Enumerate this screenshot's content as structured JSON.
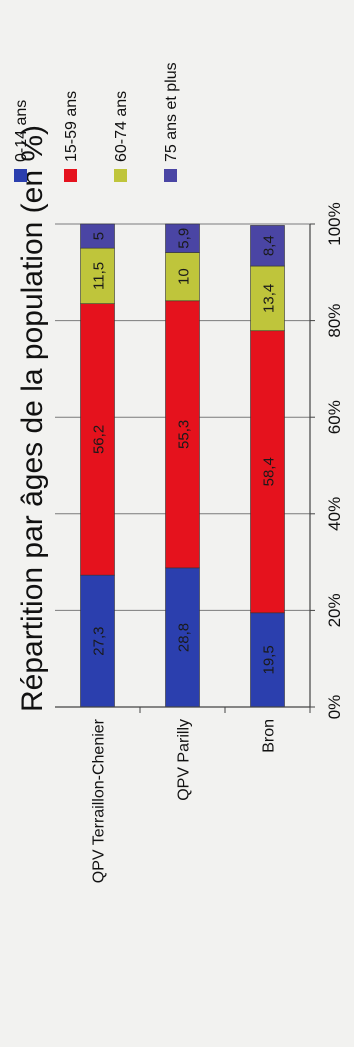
{
  "chart_data": {
    "type": "bar",
    "stacked": true,
    "percent_stacked": true,
    "orientation": "horizontal",
    "title": "Répartition par âges de la population (en %)",
    "categories": [
      "QPV Terraillon-Chenier",
      "QPV Parilly",
      "Bron"
    ],
    "series": [
      {
        "name": "0-14 ans",
        "color": "#2b3fae",
        "values": [
          27.3,
          28.8,
          19.5
        ],
        "labels": [
          "27,3",
          "28,8",
          "19,5"
        ]
      },
      {
        "name": "15-59 ans",
        "color": "#e5121d",
        "values": [
          56.2,
          55.3,
          58.4
        ],
        "labels": [
          "56,2",
          "55,3",
          "58,4"
        ]
      },
      {
        "name": "60-74 ans",
        "color": "#bfc53b",
        "values": [
          11.5,
          10,
          13.4
        ],
        "labels": [
          "11,5",
          "10",
          "13,4"
        ]
      },
      {
        "name": "75 ans et plus",
        "color": "#4a45a4",
        "values": [
          5,
          5.9,
          8.4
        ],
        "labels": [
          "5",
          "5,9",
          "8,4"
        ]
      }
    ],
    "value_axis": {
      "min": 0,
      "max": 100,
      "tick_values": [
        0,
        20,
        40,
        60,
        80,
        100
      ],
      "tick_labels": [
        "0%",
        "20%",
        "40%",
        "60%",
        "80%",
        "100%"
      ]
    },
    "grid": true,
    "legend_position": "right"
  }
}
